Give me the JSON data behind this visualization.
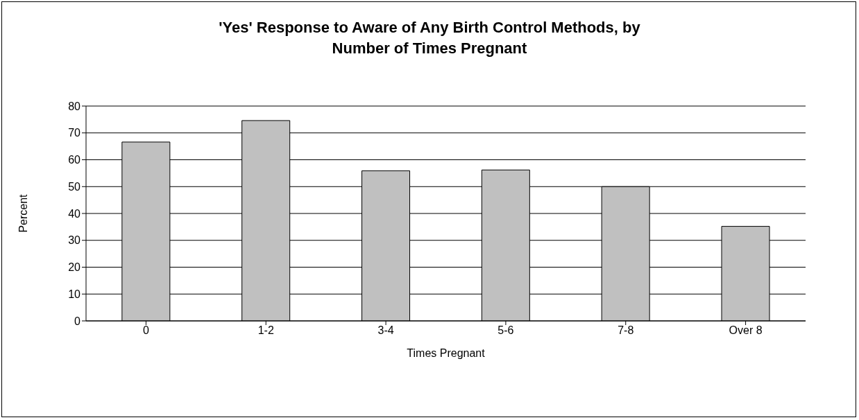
{
  "chart_data": {
    "type": "bar",
    "title": "'Yes' Response to Aware of Any Birth Control Methods, by Number of Times Pregnant",
    "xlabel": "Times Pregnant",
    "ylabel": "Percent",
    "categories": [
      "0",
      "1-2",
      "3-4",
      "5-6",
      "7-8",
      "Over 8"
    ],
    "values": [
      66.6,
      74.6,
      55.9,
      56.2,
      50,
      35.2
    ],
    "color": "#c0c0c0",
    "ylim": [
      0,
      80
    ],
    "yticks": [
      0,
      10,
      20,
      30,
      40,
      50,
      60,
      70,
      80
    ],
    "grid": "y",
    "legend": false
  }
}
